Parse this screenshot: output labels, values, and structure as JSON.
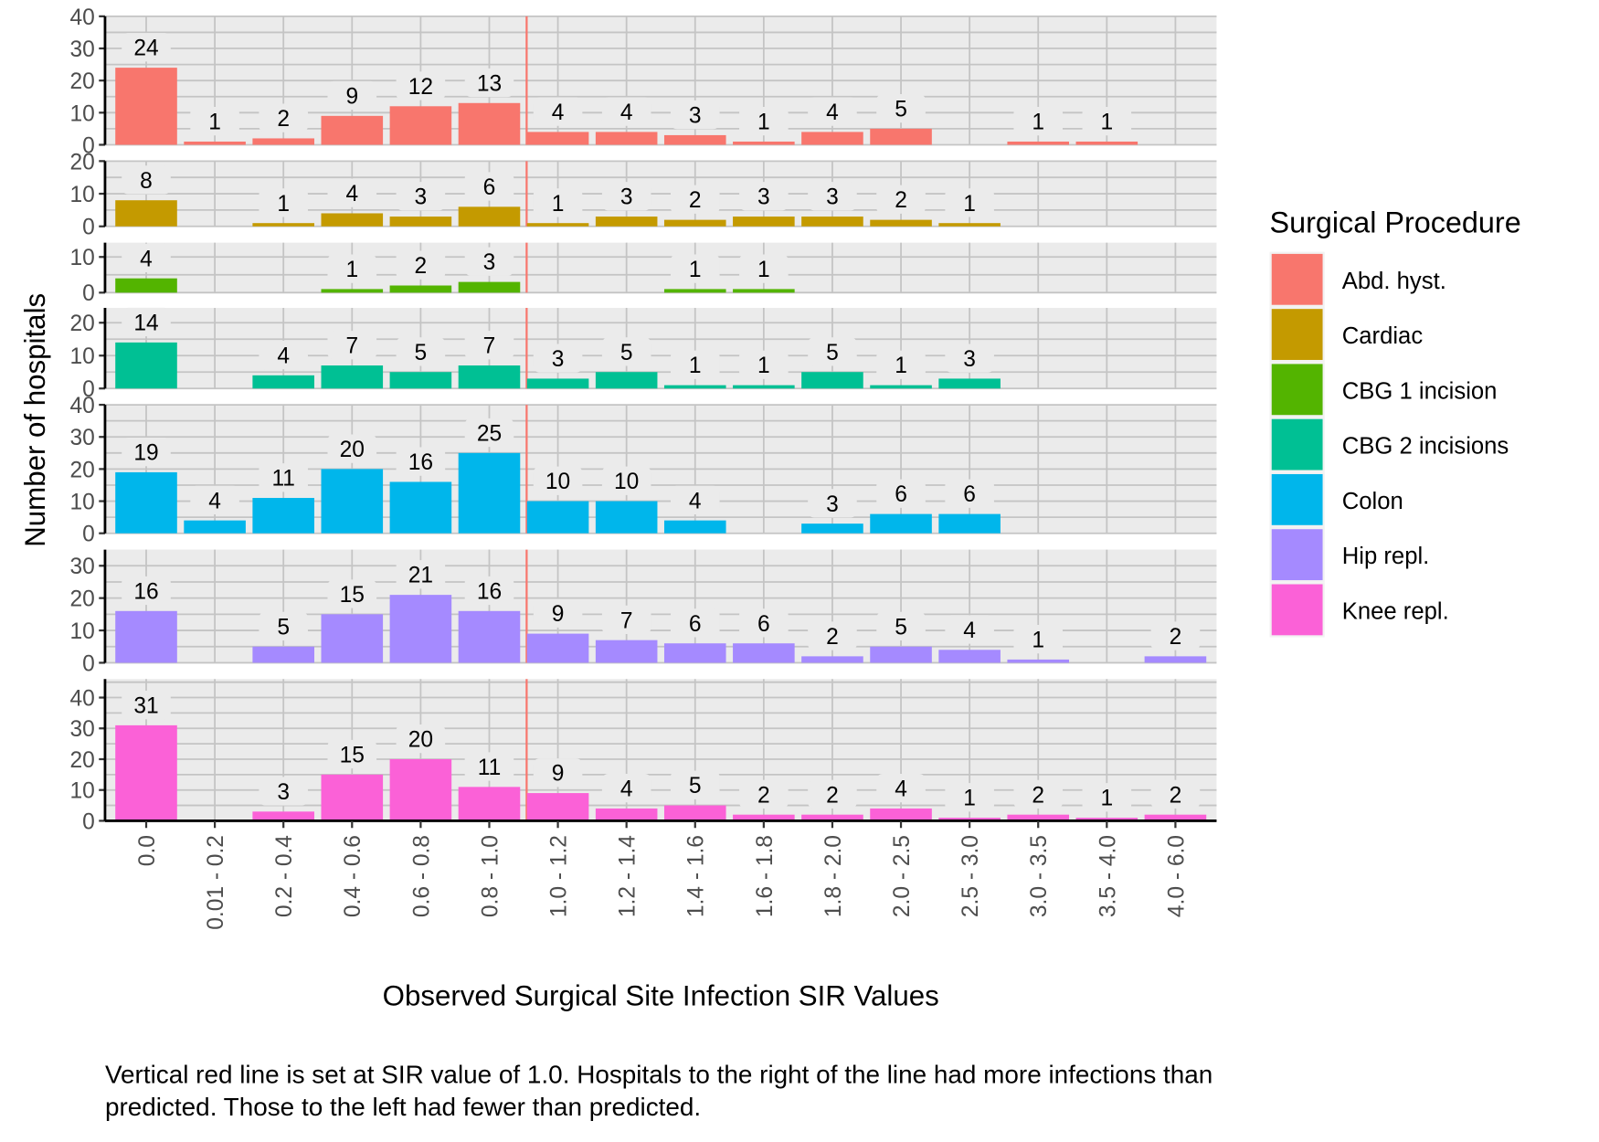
{
  "chart_data": {
    "type": "bar",
    "layout": "faceted-vertical",
    "title": "",
    "xlabel": "Observed Surgical Site Infection SIR Values",
    "ylabel": "Number of hospitals",
    "categories": [
      "0.0",
      "0.01 - 0.2",
      "0.2 - 0.4",
      "0.4 - 0.6",
      "0.6 - 0.8",
      "0.8 - 1.0",
      "1.0 - 1.2",
      "1.2 - 1.4",
      "1.4 - 1.6",
      "1.6 - 1.8",
      "1.8 - 2.0",
      "2.0 - 2.5",
      "2.5 - 3.0",
      "3.0 - 3.5",
      "3.5 - 4.0",
      "4.0 - 6.0"
    ],
    "reference_line": {
      "between_categories": [
        "0.8 - 1.0",
        "1.0 - 1.2"
      ],
      "sir_value": 1.0,
      "color": "#f8766d"
    },
    "grid": true,
    "legend": {
      "title": "Surgical Procedure",
      "placement": "right"
    },
    "series": [
      {
        "name": "Abd. hyst.",
        "color": "#f8766d",
        "ylim": [
          0,
          40
        ],
        "yticks": [
          0,
          10,
          20,
          30,
          40
        ],
        "values": [
          24,
          1,
          2,
          9,
          12,
          13,
          4,
          4,
          3,
          1,
          4,
          5,
          null,
          1,
          1,
          null
        ]
      },
      {
        "name": "Cardiac",
        "color": "#c49a00",
        "ylim": [
          0,
          20
        ],
        "yticks": [
          0,
          10,
          20
        ],
        "values": [
          8,
          null,
          1,
          4,
          3,
          6,
          1,
          3,
          2,
          3,
          3,
          2,
          1,
          null,
          null,
          null
        ]
      },
      {
        "name": "CBG 1 incision",
        "color": "#53b400",
        "ylim": [
          0,
          14
        ],
        "yticks": [
          0,
          10
        ],
        "values": [
          4,
          null,
          null,
          1,
          2,
          3,
          null,
          null,
          1,
          1,
          null,
          null,
          null,
          null,
          null,
          null
        ]
      },
      {
        "name": "CBG 2 incisions",
        "color": "#00c094",
        "ylim": [
          0,
          24.5
        ],
        "yticks": [
          0,
          10,
          20
        ],
        "values": [
          14,
          null,
          4,
          7,
          5,
          7,
          3,
          5,
          1,
          1,
          5,
          1,
          3,
          null,
          null,
          null
        ]
      },
      {
        "name": "Colon",
        "color": "#00b6eb",
        "ylim": [
          0,
          40
        ],
        "yticks": [
          0,
          10,
          20,
          30,
          40
        ],
        "values": [
          19,
          4,
          11,
          20,
          16,
          25,
          10,
          10,
          4,
          null,
          3,
          6,
          6,
          null,
          null,
          null
        ]
      },
      {
        "name": "Hip repl.",
        "color": "#a58aff",
        "ylim": [
          0,
          35
        ],
        "yticks": [
          0,
          10,
          20,
          30
        ],
        "values": [
          16,
          null,
          5,
          15,
          21,
          16,
          9,
          7,
          6,
          6,
          2,
          5,
          4,
          1,
          null,
          2
        ]
      },
      {
        "name": "Knee repl.",
        "color": "#fb61d7",
        "ylim": [
          0,
          46
        ],
        "yticks": [
          0,
          10,
          20,
          30,
          40
        ],
        "values": [
          31,
          null,
          3,
          15,
          20,
          11,
          9,
          4,
          5,
          2,
          2,
          4,
          1,
          2,
          1,
          2
        ]
      }
    ]
  },
  "caption": {
    "line1": "Vertical red line is set at SIR value of 1.0.  Hospitals to the right of the line had more infections than",
    "line2": "predicted.  Those to the left had fewer than predicted."
  }
}
